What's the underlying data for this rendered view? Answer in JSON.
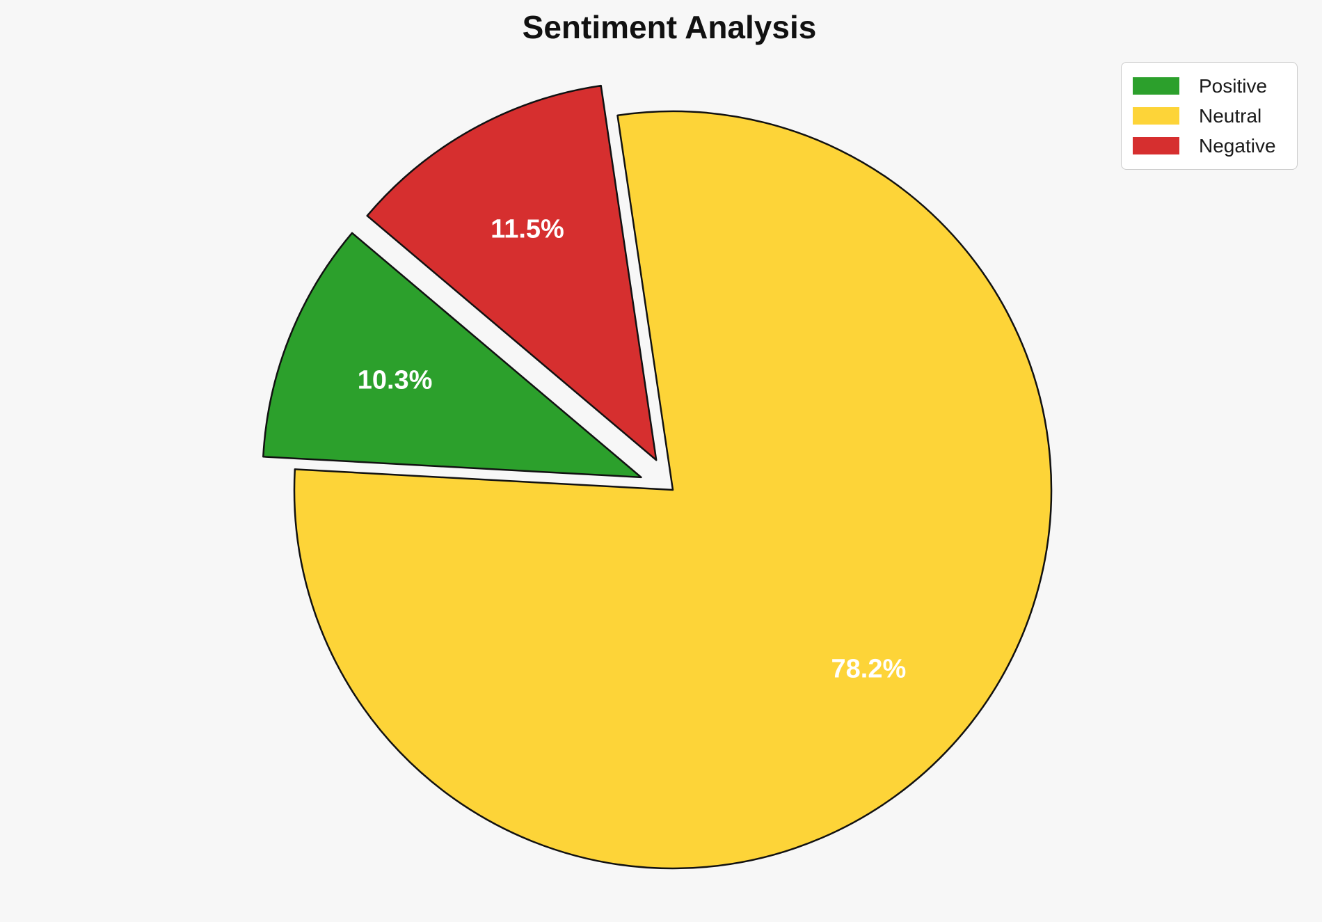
{
  "page": {
    "background_color": "#f7f7f7"
  },
  "chart_data": {
    "type": "pie",
    "title": "Sentiment Analysis",
    "categories": [
      "Positive",
      "Neutral",
      "Negative"
    ],
    "values": [
      10.3,
      78.2,
      11.5
    ],
    "labels": [
      "10.3%",
      "78.2%",
      "11.5%"
    ],
    "colors": [
      "#2ca02c",
      "#fdd438",
      "#d62f2f"
    ],
    "explode": [
      0.09,
      0,
      0.09
    ],
    "start_angle": 139.8,
    "counterclockwise": true,
    "pct_distance": 0.7,
    "label_color": "#ffffff",
    "edge_color": "#111111",
    "edge_width": 2.5,
    "legend": {
      "position": "upper right",
      "entries": [
        "Positive",
        "Neutral",
        "Negative"
      ]
    }
  }
}
